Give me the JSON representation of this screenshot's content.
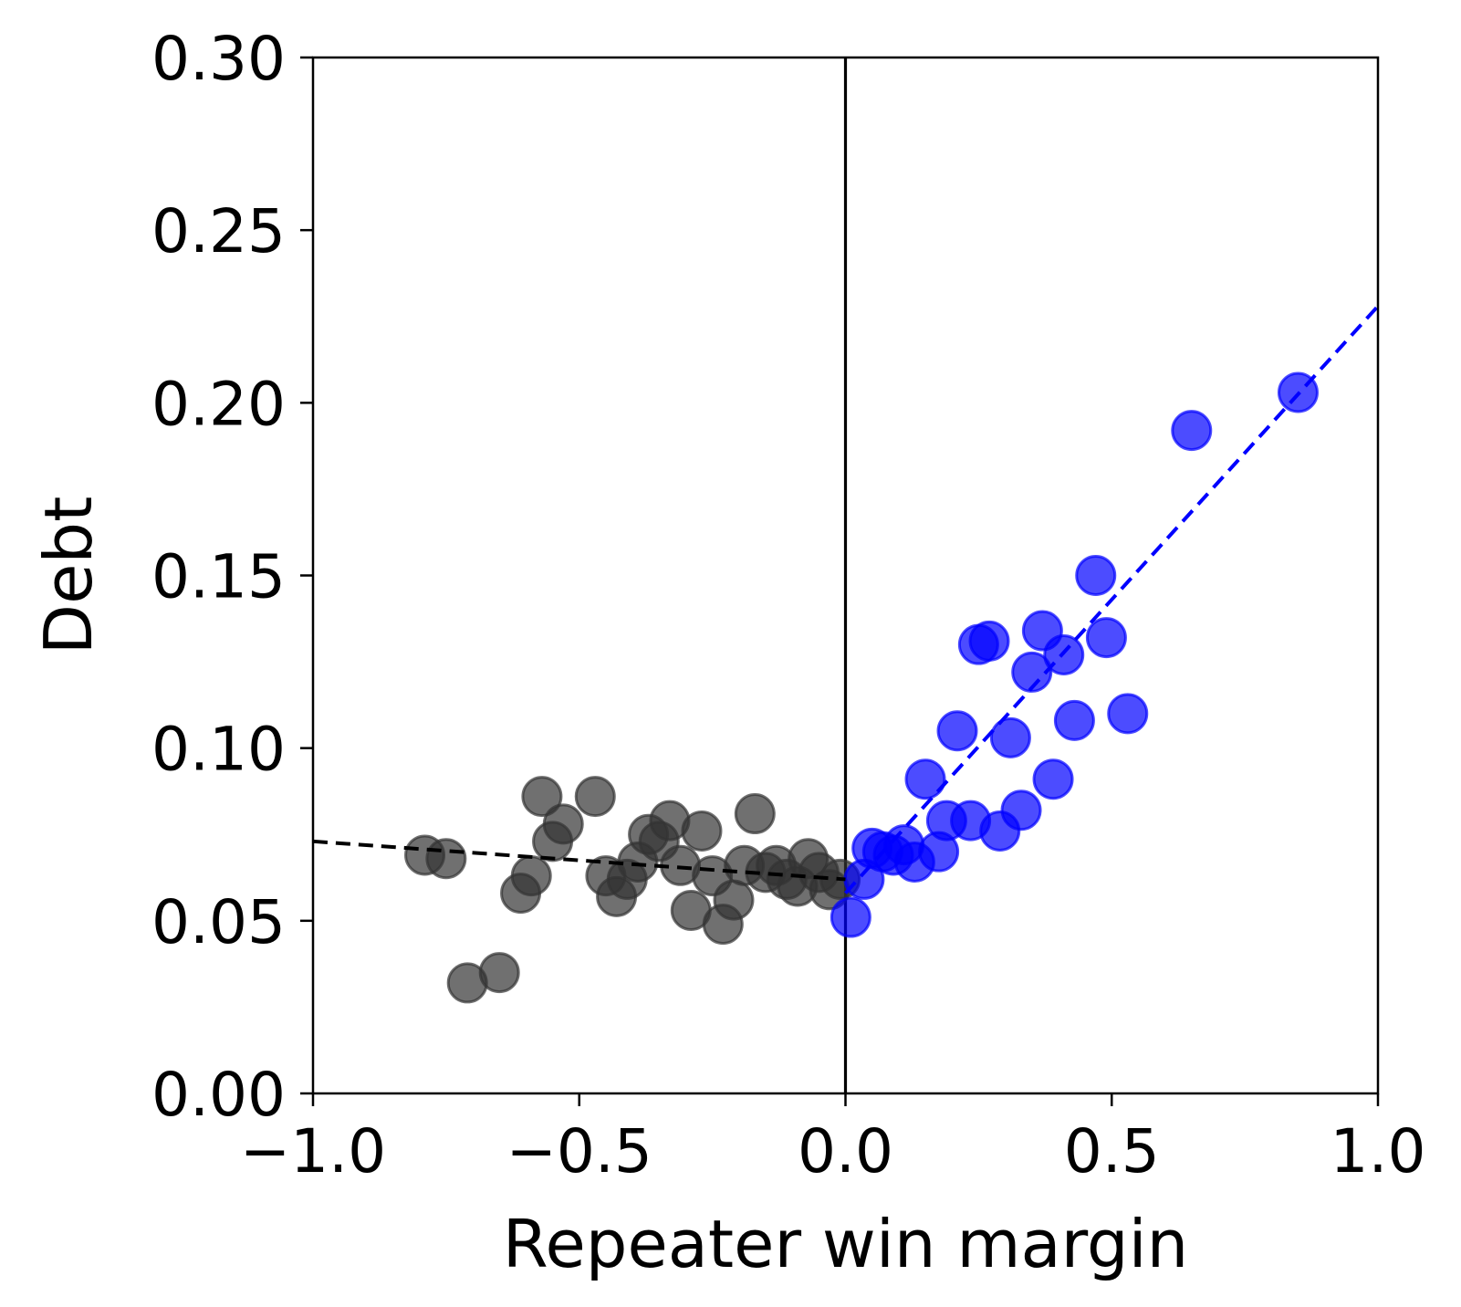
{
  "chart_data": {
    "type": "scatter",
    "title": "",
    "xlabel": "Repeater win margin",
    "ylabel": "Debt",
    "xlim": [
      -1.0,
      1.0
    ],
    "ylim": [
      0.0,
      0.3
    ],
    "xticks": [
      "−1.0",
      "−0.5",
      "0.0",
      "0.5",
      "1.0"
    ],
    "xtick_values": [
      -1.0,
      -0.5,
      0.0,
      0.5,
      1.0
    ],
    "yticks": [
      "0.00",
      "0.05",
      "0.10",
      "0.15",
      "0.20",
      "0.25",
      "0.30"
    ],
    "ytick_values": [
      0.0,
      0.05,
      0.1,
      0.15,
      0.2,
      0.25,
      0.3
    ],
    "grid": false,
    "cutoff_line_x": 0.0,
    "series": [
      {
        "side": "left",
        "color": "#333333",
        "points": [
          [
            -0.79,
            0.069
          ],
          [
            -0.75,
            0.068
          ],
          [
            -0.71,
            0.032
          ],
          [
            -0.65,
            0.035
          ],
          [
            -0.61,
            0.058
          ],
          [
            -0.59,
            0.063
          ],
          [
            -0.57,
            0.086
          ],
          [
            -0.55,
            0.073
          ],
          [
            -0.53,
            0.078
          ],
          [
            -0.47,
            0.086
          ],
          [
            -0.45,
            0.063
          ],
          [
            -0.43,
            0.057
          ],
          [
            -0.41,
            0.062
          ],
          [
            -0.39,
            0.067
          ],
          [
            -0.37,
            0.075
          ],
          [
            -0.35,
            0.073
          ],
          [
            -0.33,
            0.079
          ],
          [
            -0.31,
            0.066
          ],
          [
            -0.29,
            0.053
          ],
          [
            -0.27,
            0.076
          ],
          [
            -0.25,
            0.063
          ],
          [
            -0.23,
            0.049
          ],
          [
            -0.21,
            0.056
          ],
          [
            -0.19,
            0.066
          ],
          [
            -0.17,
            0.081
          ],
          [
            -0.15,
            0.064
          ],
          [
            -0.13,
            0.066
          ],
          [
            -0.11,
            0.062
          ],
          [
            -0.09,
            0.06
          ],
          [
            -0.07,
            0.068
          ],
          [
            -0.05,
            0.064
          ],
          [
            -0.03,
            0.059
          ],
          [
            -0.01,
            0.062
          ]
        ]
      },
      {
        "side": "right",
        "color": "#0000ff",
        "points": [
          [
            0.01,
            0.051
          ],
          [
            0.035,
            0.062
          ],
          [
            0.05,
            0.071
          ],
          [
            0.07,
            0.07
          ],
          [
            0.09,
            0.069
          ],
          [
            0.11,
            0.072
          ],
          [
            0.13,
            0.067
          ],
          [
            0.15,
            0.091
          ],
          [
            0.175,
            0.07
          ],
          [
            0.19,
            0.079
          ],
          [
            0.21,
            0.105
          ],
          [
            0.235,
            0.079
          ],
          [
            0.25,
            0.13
          ],
          [
            0.27,
            0.131
          ],
          [
            0.29,
            0.076
          ],
          [
            0.31,
            0.103
          ],
          [
            0.33,
            0.082
          ],
          [
            0.35,
            0.122
          ],
          [
            0.37,
            0.134
          ],
          [
            0.39,
            0.091
          ],
          [
            0.41,
            0.127
          ],
          [
            0.43,
            0.108
          ],
          [
            0.47,
            0.15
          ],
          [
            0.49,
            0.132
          ],
          [
            0.53,
            0.11
          ],
          [
            0.65,
            0.192
          ],
          [
            0.85,
            0.203
          ]
        ]
      }
    ],
    "fit_lines": [
      {
        "side": "left",
        "color": "#000000",
        "style": "dashed",
        "x": [
          -1.0,
          0.0
        ],
        "y": [
          0.073,
          0.062
        ]
      },
      {
        "side": "right",
        "color": "#0000ff",
        "style": "dashed",
        "x": [
          0.0,
          1.0
        ],
        "y": [
          0.058,
          0.228
        ]
      }
    ]
  }
}
